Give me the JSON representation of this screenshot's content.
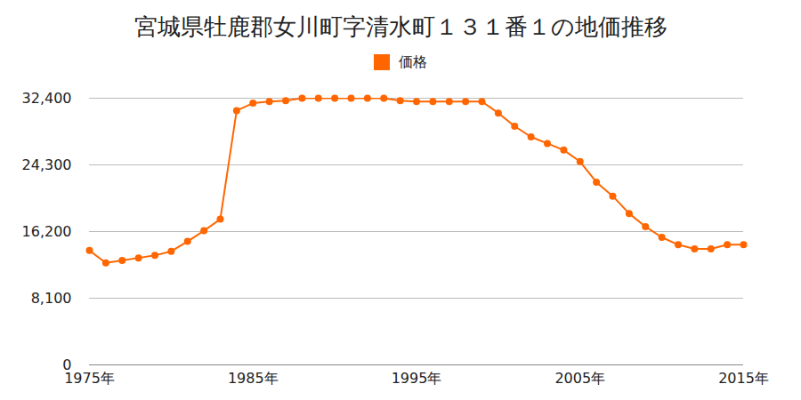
{
  "chart_data": {
    "type": "line",
    "title": "宮城県牡鹿郡女川町字清水町１３１番１の地価推移",
    "x": [
      1975,
      1976,
      1977,
      1978,
      1979,
      1980,
      1981,
      1982,
      1983,
      1984,
      1985,
      1986,
      1987,
      1988,
      1989,
      1990,
      1991,
      1992,
      1993,
      1994,
      1995,
      1996,
      1997,
      1998,
      1999,
      2000,
      2001,
      2002,
      2003,
      2004,
      2005,
      2006,
      2007,
      2008,
      2009,
      2010,
      2011,
      2012,
      2013,
      2014,
      2015
    ],
    "series": [
      {
        "name": "価格",
        "color": "#ff6600",
        "marker": "circle",
        "line_style": "solid",
        "values": [
          13900,
          12400,
          12700,
          13000,
          13300,
          13800,
          15000,
          16300,
          17700,
          30900,
          31800,
          32000,
          32100,
          32400,
          32400,
          32400,
          32400,
          32400,
          32400,
          32100,
          32000,
          32000,
          32000,
          32000,
          32000,
          30600,
          29000,
          27700,
          26900,
          26100,
          24700,
          22200,
          20500,
          18400,
          16800,
          15500,
          14600,
          14100,
          14100,
          14600,
          14600
        ]
      }
    ],
    "xlim": [
      1975,
      2015
    ],
    "xticks": [
      {
        "value": 1975,
        "label": "1975年"
      },
      {
        "value": 1985,
        "label": "1985年"
      },
      {
        "value": 1995,
        "label": "1995年"
      },
      {
        "value": 2005,
        "label": "2005年"
      },
      {
        "value": 2015,
        "label": "2015年"
      }
    ],
    "ylim": [
      0,
      32400
    ],
    "yticks": [
      0,
      {
        "value": 8100,
        "label": "8,100"
      },
      {
        "value": 16200,
        "label": "16,200"
      },
      {
        "value": 24300,
        "label": "24,300"
      },
      {
        "value": 32400,
        "label": "32,400"
      }
    ],
    "grid": true,
    "legend": "top"
  }
}
